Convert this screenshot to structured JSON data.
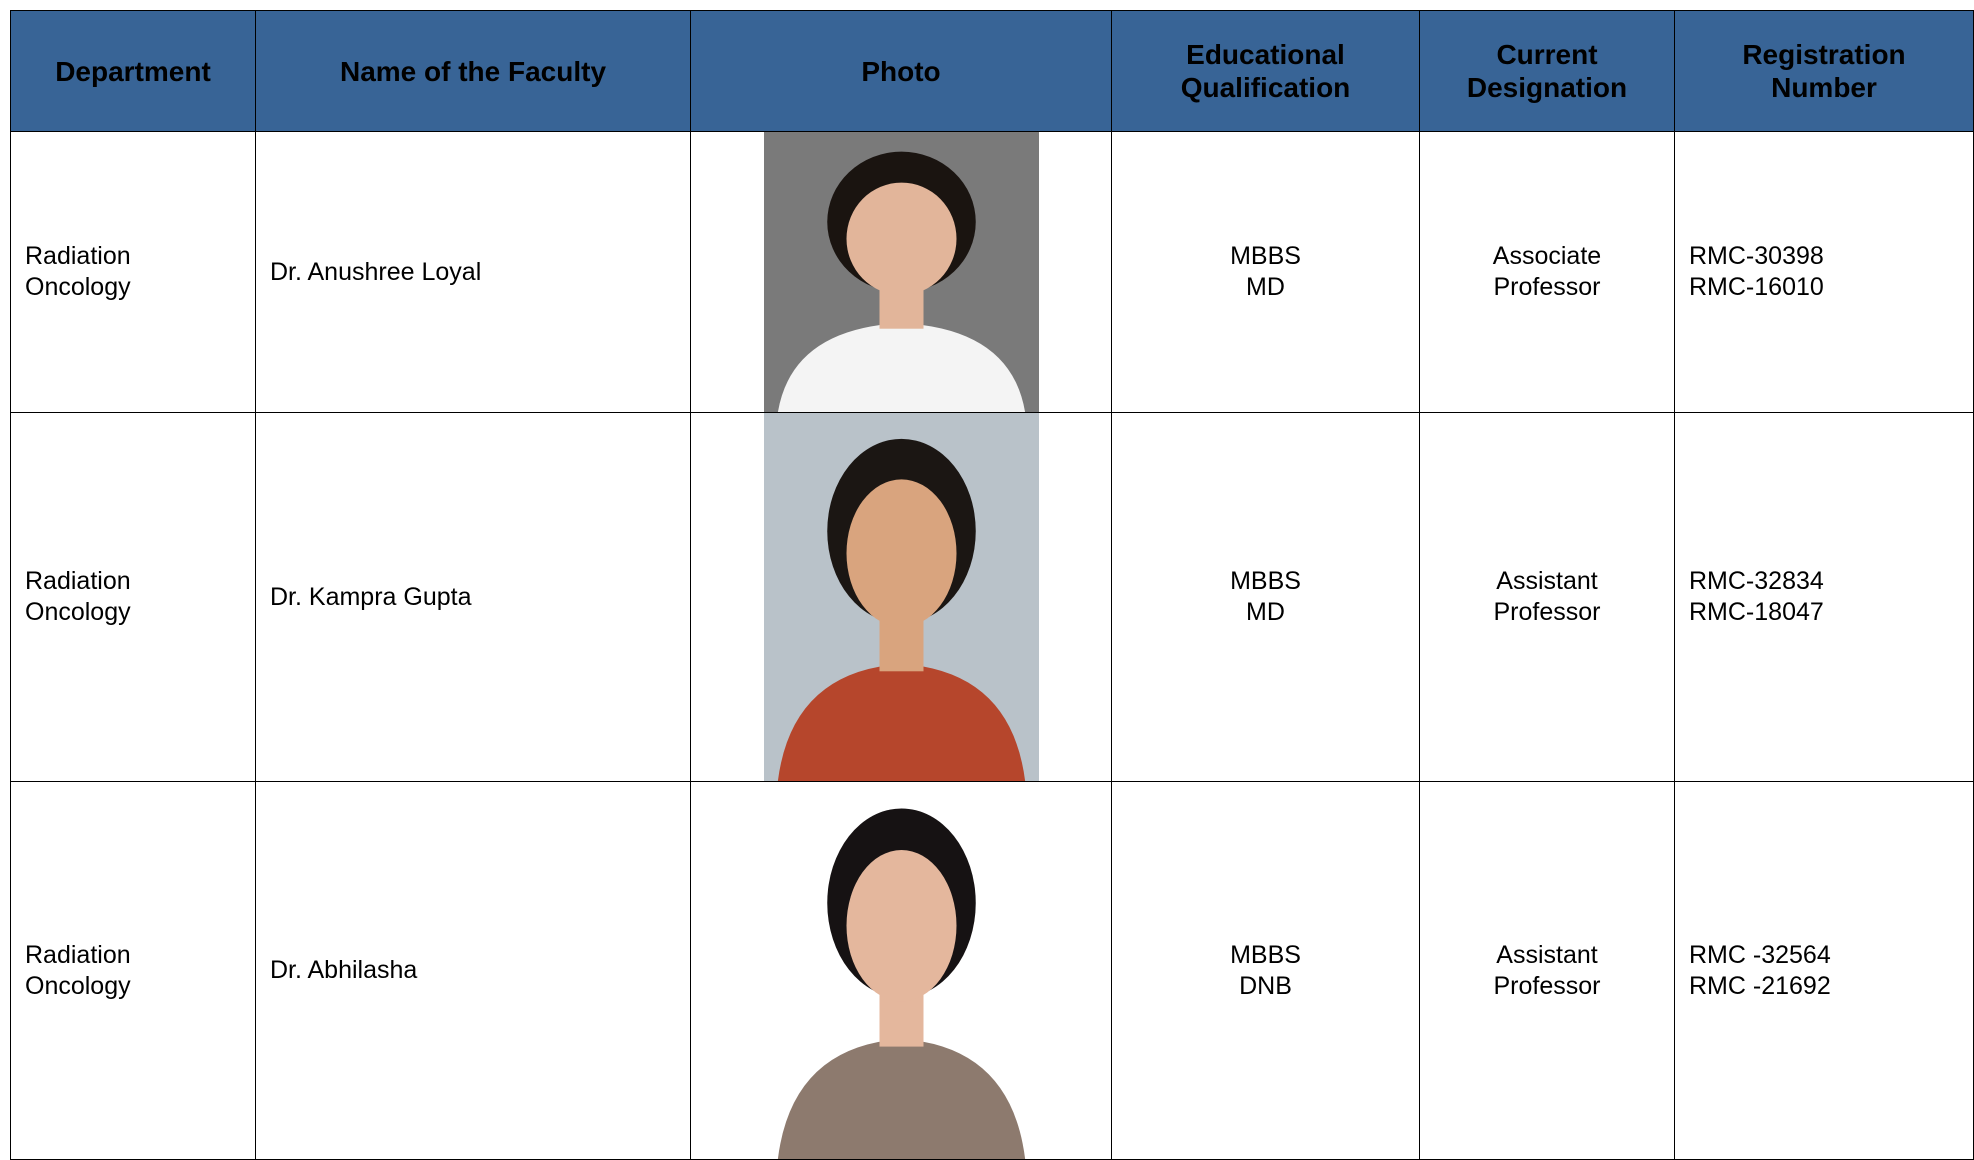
{
  "table": {
    "header": [
      "Department",
      "Name of the Faculty",
      "Photo",
      "Educational Qualification",
      "Current Designation",
      "Registration Number"
    ],
    "rows": [
      {
        "department": [
          "Radiation",
          "Oncology"
        ],
        "name": "Dr. Anushree Loyal",
        "qualification": [
          "MBBS",
          "MD"
        ],
        "designation": [
          "Associate",
          "Professor"
        ],
        "registration": [
          "RMC-30398",
          "RMC-16010"
        ]
      },
      {
        "department": [
          "Radiation",
          "Oncology"
        ],
        "name": "Dr. Kampra Gupta",
        "qualification": [
          "MBBS",
          "MD"
        ],
        "designation": [
          "Assistant",
          "Professor"
        ],
        "registration": [
          "RMC-32834",
          "RMC-18047"
        ]
      },
      {
        "department": [
          "Radiation",
          "Oncology"
        ],
        "name": "Dr. Abhilasha",
        "qualification": [
          "MBBS",
          "DNB"
        ],
        "designation": [
          "Assistant",
          "Professor"
        ],
        "registration": [
          "RMC -32564",
          "RMC -21692"
        ]
      }
    ]
  }
}
